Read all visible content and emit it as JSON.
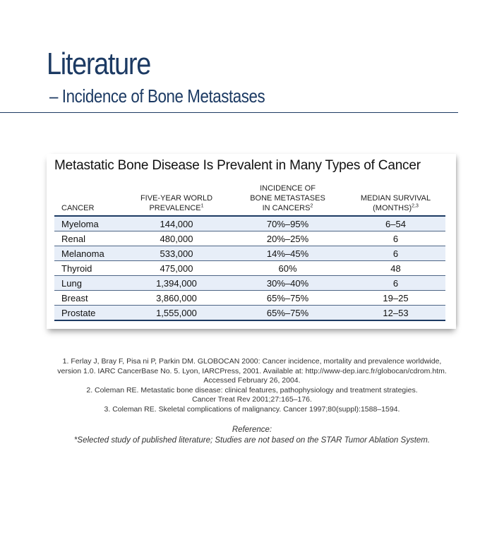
{
  "header": {
    "title": "Literature",
    "subtitle": "– Incidence of Bone Metastases"
  },
  "figure": {
    "title": "Metastatic Bone Disease Is Prevalent in Many Types of Cancer",
    "columns": [
      {
        "label": "CANCER",
        "lines": [
          "CANCER"
        ]
      },
      {
        "label": "FIVE-YEAR WORLD PREVALENCE",
        "lines": [
          "FIVE-YEAR WORLD",
          "PREVALENCE"
        ],
        "sup": "1"
      },
      {
        "label": "INCIDENCE OF BONE METASTASES IN CANCERS",
        "lines": [
          "INCIDENCE OF",
          "BONE METASTASES",
          "IN CANCERS"
        ],
        "sup": "2"
      },
      {
        "label": "MEDIAN SURVIVAL (MONTHS)",
        "lines": [
          "MEDIAN SURVIVAL",
          "(MONTHS)"
        ],
        "sup": "2,3"
      }
    ],
    "rows": [
      {
        "cancer": "Myeloma",
        "prevalence": "144,000",
        "incidence": "70%–95%",
        "survival": "6–54"
      },
      {
        "cancer": "Renal",
        "prevalence": "480,000",
        "incidence": "20%–25%",
        "survival": "6"
      },
      {
        "cancer": "Melanoma",
        "prevalence": "533,000",
        "incidence": "14%–45%",
        "survival": "6"
      },
      {
        "cancer": "Thyroid",
        "prevalence": "475,000",
        "incidence": "60%",
        "survival": "48"
      },
      {
        "cancer": "Lung",
        "prevalence": "1,394,000",
        "incidence": "30%–40%",
        "survival": "6"
      },
      {
        "cancer": "Breast",
        "prevalence": "3,860,000",
        "incidence": "65%–75%",
        "survival": "19–25"
      },
      {
        "cancer": "Prostate",
        "prevalence": "1,555,000",
        "incidence": "65%–75%",
        "survival": "12–53"
      }
    ]
  },
  "footnotes": {
    "line1": "1. Ferlay J, Bray F, Pisa  ni P, Parkin DM. GLOBOCAN 2000: Cancer incidence, mortality and prevalence worldwide,",
    "line2": "version 1.0. IARC CancerBase No. 5. Lyon, IARCPress, 2001. Available at: http://www-dep.iarc.fr/globocan/cdrom.htm.",
    "line3": "Accessed February 26, 2004.",
    "line4": "2. Coleman RE. Metastatic bone disease: clinical features, pathophysiology and treatment strategies.",
    "line5": "Cancer Treat Rev 2001;27:165–176.",
    "line6": "3. Coleman RE. Skeletal complications of malignancy. Cancer 1997;80(suppl):1588–1594."
  },
  "reference": {
    "label": "Reference:",
    "text": "*Selected study of published literature; Studies are not based on the STAR Tumor Ablation System."
  },
  "colors": {
    "accent": "#1c3a63",
    "row_stripe": "#e7eef8"
  }
}
